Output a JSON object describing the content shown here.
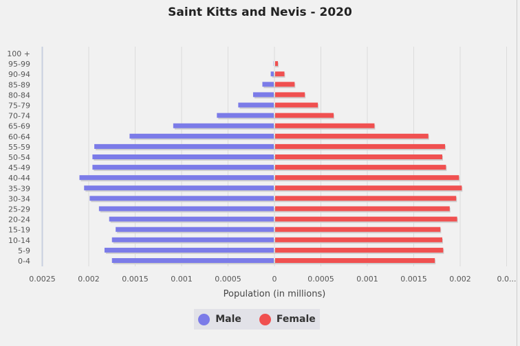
{
  "chart_data": {
    "type": "bar",
    "title": "Saint Kitts and Nevis - 2020",
    "xlabel": "Population (in millions)",
    "ylabel": "",
    "categories": [
      "100 +",
      "95-99",
      "90-94",
      "85-89",
      "80-84",
      "75-79",
      "70-74",
      "65-69",
      "60-64",
      "55-59",
      "50-54",
      "45-49",
      "40-44",
      "35-39",
      "30-34",
      "25-29",
      "20-24",
      "15-19",
      "10-14",
      "5-9",
      "0-4"
    ],
    "series": [
      {
        "name": "Male",
        "color": "#7b7be8",
        "values": [
          0,
          1e-05,
          4e-05,
          0.00013,
          0.00023,
          0.00039,
          0.00062,
          0.00109,
          0.00156,
          0.00194,
          0.00196,
          0.00196,
          0.0021,
          0.00205,
          0.00199,
          0.00189,
          0.00178,
          0.00171,
          0.00175,
          0.00183,
          0.00175
        ]
      },
      {
        "name": "Female",
        "color": "#f05050",
        "values": [
          0,
          3e-05,
          0.0001,
          0.00021,
          0.00032,
          0.00046,
          0.00063,
          0.00107,
          0.00165,
          0.00183,
          0.0018,
          0.00184,
          0.00198,
          0.00201,
          0.00195,
          0.00188,
          0.00196,
          0.00178,
          0.0018,
          0.00181,
          0.00172
        ]
      }
    ],
    "xticks": [
      -0.0025,
      -0.002,
      -0.0015,
      -0.001,
      -0.0005,
      0,
      0.0005,
      0.001,
      0.0015,
      0.002,
      0.0025
    ],
    "xtick_labels": [
      "0.0025",
      "0.002",
      "0.0015",
      "0.001",
      "0.0005",
      "0",
      "0.0005",
      "0.001",
      "0.0015",
      "0.002",
      "0.0..."
    ],
    "xlim": [
      -0.0025,
      0.0025
    ],
    "grid": true,
    "legend": "bottom-center"
  }
}
